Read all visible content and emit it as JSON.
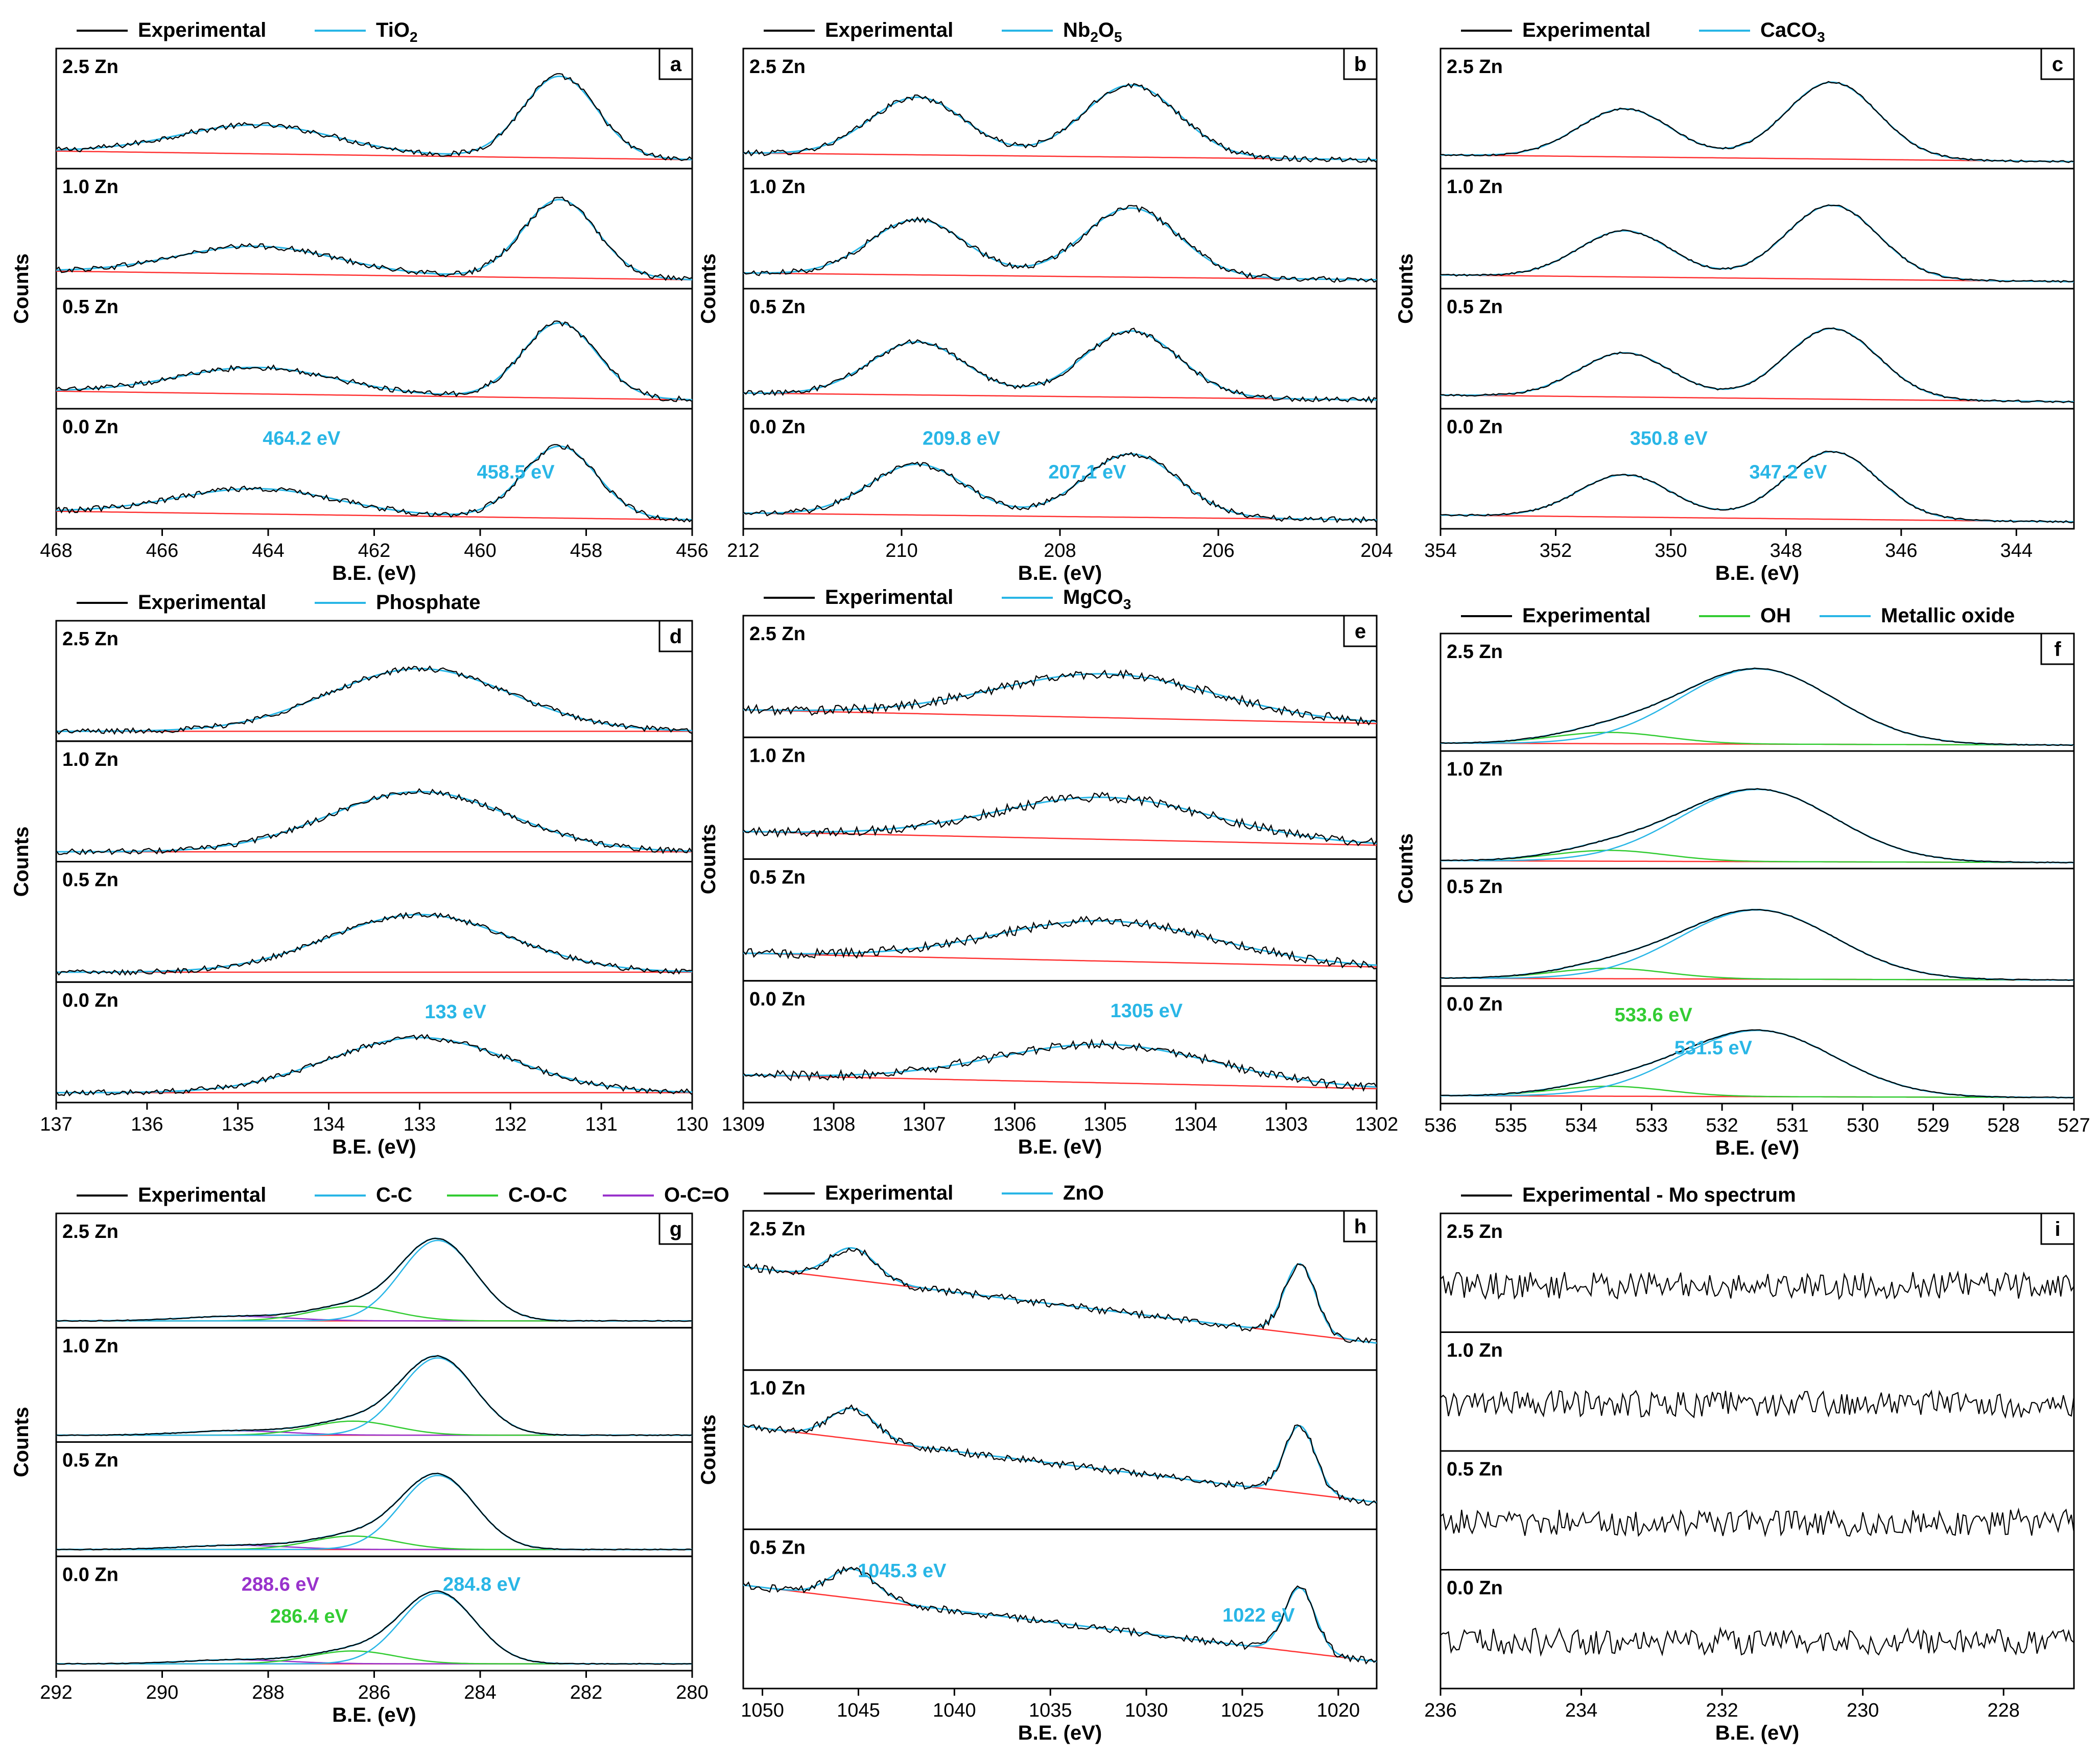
{
  "chart_data": [
    {
      "id": "a",
      "panel_letter": "a",
      "type": "line",
      "xlabel": "B.E. (eV)",
      "ylabel": "Counts",
      "xlim": [
        468,
        456
      ],
      "xticks": [
        468,
        466,
        464,
        462,
        460,
        458,
        456
      ],
      "legend": [
        {
          "label": "Experimental",
          "color": "#000000"
        },
        {
          "label": "TiO",
          "sub": "2",
          "color": "#29b6e6"
        }
      ],
      "samples": [
        "2.5 Zn",
        "1.0 Zn",
        "0.5 Zn",
        "0.0 Zn"
      ],
      "peaks": [
        {
          "center": 464.2,
          "height": 0.3,
          "width": 1.5,
          "curve": "fit"
        },
        {
          "center": 458.5,
          "height": 0.85,
          "width": 0.7,
          "curve": "fit"
        }
      ],
      "baseline": {
        "start": 0.14,
        "end": 0.05
      },
      "noise": 0.03,
      "annotations": [
        {
          "text": "464.2 eV",
          "x": 464.2,
          "color": "#29b6e6"
        },
        {
          "text": "458.5 eV",
          "x": 458.5,
          "color": "#29b6e6"
        }
      ]
    },
    {
      "id": "b",
      "panel_letter": "b",
      "type": "line",
      "xlabel": "B.E. (eV)",
      "ylabel": "Counts",
      "xlim": [
        212,
        204
      ],
      "xticks": [
        212,
        210,
        208,
        206,
        204
      ],
      "legend": [
        {
          "label": "Experimental",
          "color": "#000000"
        },
        {
          "label": "Nb",
          "sub": "2",
          "tail": "O",
          "sub2": "5",
          "color": "#29b6e6"
        }
      ],
      "samples": [
        "2.5 Zn",
        "1.0 Zn",
        "0.5 Zn",
        "0.0 Zn"
      ],
      "peaks": [
        {
          "center": 209.8,
          "height": 0.6,
          "width": 0.6,
          "curve": "fit"
        },
        {
          "center": 207.1,
          "height": 0.75,
          "width": 0.6,
          "curve": "fit"
        }
      ],
      "baseline": {
        "start": 0.12,
        "end": 0.05
      },
      "noise": 0.03,
      "annotations": [
        {
          "text": "209.8 eV",
          "x": 209.8,
          "color": "#29b6e6"
        },
        {
          "text": "207.1 eV",
          "x": 207.1,
          "color": "#29b6e6"
        }
      ]
    },
    {
      "id": "c",
      "panel_letter": "c",
      "type": "line",
      "xlabel": "B.E. (eV)",
      "ylabel": "Counts",
      "xlim": [
        354,
        343
      ],
      "xticks": [
        354,
        352,
        350,
        348,
        346,
        344
      ],
      "legend": [
        {
          "label": "Experimental",
          "color": "#000000"
        },
        {
          "label": "CaCO",
          "sub": "3",
          "color": "#29b6e6"
        }
      ],
      "samples": [
        "2.5 Zn",
        "1.0 Zn",
        "0.5 Zn",
        "0.0 Zn"
      ],
      "peaks": [
        {
          "center": 350.8,
          "height": 0.5,
          "width": 0.8,
          "curve": "fit"
        },
        {
          "center": 347.2,
          "height": 0.8,
          "width": 0.8,
          "curve": "fit"
        }
      ],
      "baseline": {
        "start": 0.1,
        "end": 0.03
      },
      "noise": 0.01,
      "annotations": [
        {
          "text": "350.8 eV",
          "x": 350.8,
          "color": "#29b6e6"
        },
        {
          "text": "347.2 eV",
          "x": 347.2,
          "color": "#29b6e6"
        }
      ]
    },
    {
      "id": "d",
      "panel_letter": "d",
      "type": "line",
      "xlabel": "B.E. (eV)",
      "ylabel": "Counts",
      "xlim": [
        137,
        130
      ],
      "xticks": [
        137,
        136,
        135,
        134,
        133,
        132,
        131,
        130
      ],
      "legend": [
        {
          "label": "Experimental",
          "color": "#000000"
        },
        {
          "label": "Phosphate",
          "color": "#29b6e6"
        }
      ],
      "samples": [
        "2.5 Zn",
        "1.0 Zn",
        "0.5 Zn",
        "0.0 Zn"
      ],
      "peaks": [
        {
          "center": 133.0,
          "height": 0.65,
          "width": 1.0,
          "curve": "fit"
        }
      ],
      "baseline": {
        "start": 0.06,
        "end": 0.06
      },
      "noise": 0.03,
      "annotations": [
        {
          "text": "133 eV",
          "x": 133.0,
          "color": "#29b6e6"
        }
      ]
    },
    {
      "id": "e",
      "panel_letter": "e",
      "type": "line",
      "xlabel": "B.E. (eV)",
      "ylabel": "Counts",
      "xlim": [
        1309,
        1302
      ],
      "xticks": [
        1309,
        1308,
        1307,
        1306,
        1305,
        1304,
        1303,
        1302
      ],
      "legend": [
        {
          "label": "Experimental",
          "color": "#000000"
        },
        {
          "label": "MgCO",
          "sub": "3",
          "color": "#29b6e6"
        }
      ],
      "samples": [
        "2.5 Zn",
        "1.0 Zn",
        "0.5 Zn",
        "0.0 Zn"
      ],
      "peaks": [
        {
          "center": 1305.0,
          "height": 0.45,
          "width": 1.2,
          "curve": "fit"
        }
      ],
      "baseline": {
        "start": 0.24,
        "end": 0.1
      },
      "noise": 0.05,
      "annotations": [
        {
          "text": "1305 eV",
          "x": 1305.0,
          "color": "#29b6e6"
        }
      ]
    },
    {
      "id": "f",
      "panel_letter": "f",
      "type": "line",
      "xlabel": "B.E. (eV)",
      "ylabel": "Counts",
      "xlim": [
        536,
        527
      ],
      "xticks": [
        536,
        535,
        534,
        533,
        532,
        531,
        530,
        529,
        528,
        527
      ],
      "legend": [
        {
          "label": "Experimental",
          "color": "#000000"
        },
        {
          "label": "OH",
          "color": "#33cc33"
        },
        {
          "label": "Metallic oxide",
          "color": "#29b6e6"
        }
      ],
      "samples": [
        "2.5 Zn",
        "1.0 Zn",
        "0.5 Zn",
        "0.0 Zn"
      ],
      "peaks": [
        {
          "center": 533.6,
          "height": 0.12,
          "width": 0.8,
          "curve": "OH"
        },
        {
          "center": 531.5,
          "height": 0.8,
          "width": 1.1,
          "curve": "Metallic oxide"
        }
      ],
      "baseline": {
        "start": 0.04,
        "end": 0.02
      },
      "noise": 0.005,
      "annotations": [
        {
          "text": "533.6 eV",
          "x": 533.6,
          "color": "#33cc33"
        },
        {
          "text": "531.5 eV",
          "x": 531.5,
          "color": "#29b6e6"
        }
      ]
    },
    {
      "id": "g",
      "panel_letter": "g",
      "type": "line",
      "xlabel": "B.E. (eV)",
      "ylabel": "Counts",
      "xlim": [
        292,
        280
      ],
      "xticks": [
        292,
        290,
        288,
        286,
        284,
        282,
        280
      ],
      "legend": [
        {
          "label": "Experimental",
          "color": "#000000"
        },
        {
          "label": "C-C",
          "color": "#29b6e6"
        },
        {
          "label": "C-O-C",
          "color": "#33cc33"
        },
        {
          "label": "O-C=O",
          "color": "#9933cc"
        }
      ],
      "samples": [
        "2.5 Zn",
        "1.0 Zn",
        "0.5 Zn",
        "0.0 Zn"
      ],
      "peaks": [
        {
          "center": 288.6,
          "height": 0.05,
          "width": 1.0,
          "curve": "O-C=O"
        },
        {
          "center": 286.4,
          "height": 0.16,
          "width": 0.8,
          "curve": "C-O-C"
        },
        {
          "center": 284.8,
          "height": 0.88,
          "width": 0.7,
          "curve": "C-C"
        }
      ],
      "baseline": {
        "start": 0.03,
        "end": 0.03
      },
      "noise": 0.005,
      "annotations": [
        {
          "text": "288.6 eV",
          "x": 288.6,
          "color": "#9933cc"
        },
        {
          "text": "286.4 eV",
          "x": 286.4,
          "color": "#33cc33"
        },
        {
          "text": "284.8 eV",
          "x": 284.8,
          "color": "#29b6e6"
        }
      ]
    },
    {
      "id": "h",
      "panel_letter": "h",
      "type": "line",
      "xlabel": "B.E. (eV)",
      "ylabel": "Counts",
      "xlim": [
        1051,
        1018
      ],
      "xticks": [
        1050,
        1045,
        1040,
        1035,
        1030,
        1025,
        1020
      ],
      "legend": [
        {
          "label": "Experimental",
          "color": "#000000"
        },
        {
          "label": "ZnO",
          "color": "#29b6e6"
        }
      ],
      "samples": [
        "2.5 Zn",
        "1.0 Zn",
        "0.5 Zn"
      ],
      "peaks": [
        {
          "center": 1045.3,
          "height": 0.25,
          "width": 1.2,
          "curve": "fit"
        },
        {
          "center": 1022.0,
          "height": 0.55,
          "width": 0.8,
          "curve": "fit"
        }
      ],
      "baseline": {
        "start": 0.78,
        "end": 0.18
      },
      "noise": 0.03,
      "annotations": [
        {
          "text": "1045.3 eV",
          "x": 1045.3,
          "color": "#29b6e6"
        },
        {
          "text": "1022 eV",
          "x": 1022.0,
          "color": "#29b6e6"
        }
      ]
    },
    {
      "id": "i",
      "panel_letter": "i",
      "type": "line",
      "xlabel": "B.E. (eV)",
      "ylabel": "",
      "xlim": [
        236,
        227
      ],
      "xticks": [
        236,
        234,
        232,
        230,
        228
      ],
      "legend": [
        {
          "label": "Experimental - Mo spectrum",
          "color": "#000000"
        }
      ],
      "samples": [
        "2.5 Zn",
        "1.0 Zn",
        "0.5 Zn",
        "0.0 Zn"
      ],
      "peaks": [],
      "baseline": null,
      "noise": 0.14,
      "annotations": []
    }
  ]
}
